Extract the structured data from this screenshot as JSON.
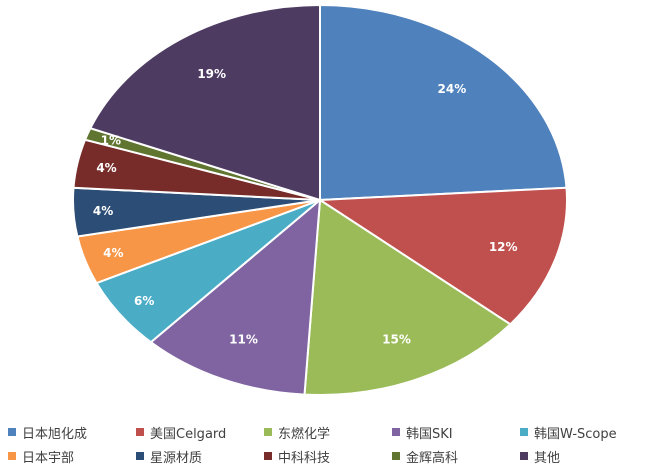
{
  "chart_data": {
    "type": "pie",
    "title": "",
    "start_angle_deg": 0,
    "direction": "clockwise",
    "series": [
      {
        "name": "日本旭化成",
        "value": 24,
        "label": "24%",
        "color": "#4f81bd"
      },
      {
        "name": "美国Celgard",
        "value": 12,
        "label": "12%",
        "color": "#c0504d"
      },
      {
        "name": "东燃化学",
        "value": 15,
        "label": "15%",
        "color": "#9bbb59"
      },
      {
        "name": "韩国SKI",
        "value": 11,
        "label": "11%",
        "color": "#8064a2"
      },
      {
        "name": "韩国W-Scope",
        "value": 6,
        "label": "6%",
        "color": "#4bacc6"
      },
      {
        "name": "日本宇部",
        "value": 4,
        "label": "4%",
        "color": "#f79646"
      },
      {
        "name": "星源材质",
        "value": 4,
        "label": "4%",
        "color": "#2c4d75"
      },
      {
        "name": "中科科技",
        "value": 4,
        "label": "4%",
        "color": "#772c2a"
      },
      {
        "name": "金辉高科",
        "value": 1,
        "label": "1%",
        "color": "#5f7530"
      },
      {
        "name": "其他",
        "value": 19,
        "label": "19%",
        "color": "#4d3b62"
      }
    ],
    "legend_position": "bottom"
  }
}
